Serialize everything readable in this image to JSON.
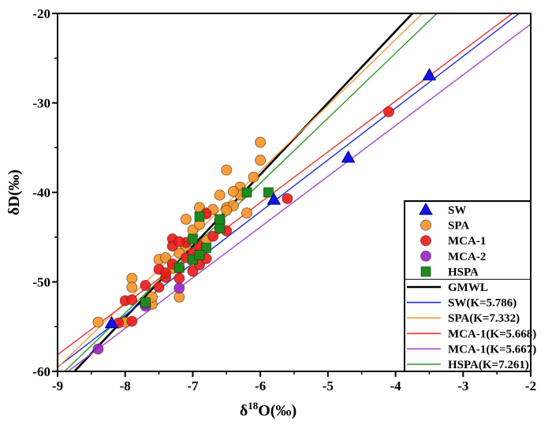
{
  "chart_data": {
    "type": "scatter",
    "title": "",
    "xlabel": "δ18O(‰)",
    "xlabel_main": "δ",
    "xlabel_sup": "18",
    "xlabel_rest": "O(‰)",
    "ylabel": "δD(‰)",
    "xlim": [
      -9,
      -2
    ],
    "ylim": [
      -60,
      -20
    ],
    "xticks": [
      -9,
      -8,
      -7,
      -6,
      -5,
      -4,
      -3,
      -2
    ],
    "yticks": [
      -60,
      -50,
      -40,
      -30,
      -20
    ],
    "grid": false,
    "legend_position": "bottom-right",
    "series": [
      {
        "name": "SW",
        "marker": "triangle",
        "color": "#1414e6",
        "points": [
          [
            -8.2,
            -54.6
          ],
          [
            -5.8,
            -40.8
          ],
          [
            -4.7,
            -36.1
          ],
          [
            -3.5,
            -26.9
          ]
        ]
      },
      {
        "name": "SPA",
        "marker": "circle",
        "color": "#f7972b",
        "points": [
          [
            -8.4,
            -54.5
          ],
          [
            -8.0,
            -54.5
          ],
          [
            -7.9,
            -49.6
          ],
          [
            -7.9,
            -50.6
          ],
          [
            -7.6,
            -52.5
          ],
          [
            -7.5,
            -47.5
          ],
          [
            -7.4,
            -47.3
          ],
          [
            -7.2,
            -51.7
          ],
          [
            -7.1,
            -43.0
          ],
          [
            -7.0,
            -44.2
          ],
          [
            -6.9,
            -41.7
          ],
          [
            -6.8,
            -45.4
          ],
          [
            -6.8,
            -42.3
          ],
          [
            -6.7,
            -41.9
          ],
          [
            -6.6,
            -40.3
          ],
          [
            -6.6,
            -44.0
          ],
          [
            -6.5,
            -41.7
          ],
          [
            -6.5,
            -37.5
          ],
          [
            -6.4,
            -41.5
          ],
          [
            -6.3,
            -39.4
          ],
          [
            -6.3,
            -40.3
          ],
          [
            -6.2,
            -42.3
          ],
          [
            -6.1,
            -38.3
          ],
          [
            -6.0,
            -36.4
          ],
          [
            -6.0,
            -34.4
          ],
          [
            -7.6,
            -51.7
          ],
          [
            -7.3,
            -48.5
          ],
          [
            -7.1,
            -46.0
          ],
          [
            -6.9,
            -43.6
          ],
          [
            -6.6,
            -43.1
          ],
          [
            -6.4,
            -39.9
          ],
          [
            -7.0,
            -47.6
          ],
          [
            -7.2,
            -46.8
          ],
          [
            -6.5,
            -42.0
          ]
        ]
      },
      {
        "name": "MCA-1",
        "marker": "circle",
        "color": "#ee1c1c",
        "points": [
          [
            -8.1,
            -54.6
          ],
          [
            -7.9,
            -54.4
          ],
          [
            -8.0,
            -52.1
          ],
          [
            -7.9,
            -52.0
          ],
          [
            -7.7,
            -50.4
          ],
          [
            -7.7,
            -52.5
          ],
          [
            -7.5,
            -48.6
          ],
          [
            -7.5,
            -50.6
          ],
          [
            -7.4,
            -49.5
          ],
          [
            -7.3,
            -45.2
          ],
          [
            -7.3,
            -46.0
          ],
          [
            -7.2,
            -48.5
          ],
          [
            -7.2,
            -49.6
          ],
          [
            -7.1,
            -47.3
          ],
          [
            -7.1,
            -45.6
          ],
          [
            -7.0,
            -46.8
          ],
          [
            -6.9,
            -48.1
          ],
          [
            -6.8,
            -42.4
          ],
          [
            -6.8,
            -47.4
          ],
          [
            -6.7,
            -44.9
          ],
          [
            -6.6,
            -43.3
          ],
          [
            -6.5,
            -44.3
          ],
          [
            -7.3,
            -48.0
          ],
          [
            -7.4,
            -49.0
          ],
          [
            -7.0,
            -48.8
          ],
          [
            -7.2,
            -45.5
          ],
          [
            -6.9,
            -46.0
          ],
          [
            -5.6,
            -40.7
          ],
          [
            -4.1,
            -31.0
          ]
        ]
      },
      {
        "name": "MCA-2",
        "marker": "circle",
        "color": "#9a28c8",
        "points": [
          [
            -8.4,
            -57.5
          ],
          [
            -7.2,
            -50.7
          ],
          [
            -7.7,
            -52.7
          ]
        ]
      },
      {
        "name": "HSPA",
        "marker": "square",
        "color": "#1e8a1e",
        "points": [
          [
            -7.7,
            -52.3
          ],
          [
            -7.2,
            -48.4
          ],
          [
            -7.0,
            -45.2
          ],
          [
            -6.9,
            -42.7
          ],
          [
            -6.8,
            -46.2
          ],
          [
            -6.6,
            -44.0
          ],
          [
            -6.6,
            -43.0
          ],
          [
            -6.2,
            -40.0
          ],
          [
            -5.88,
            -40.0
          ],
          [
            -7.0,
            -47.5
          ],
          [
            -6.9,
            -47.0
          ]
        ]
      }
    ],
    "lines": [
      {
        "name": "GMWL",
        "slope": 8.0,
        "intercept": 10.0,
        "color": "#000000",
        "bold": true
      },
      {
        "name": "SW(K=5.786)",
        "slope": 5.786,
        "intercept": -7.44,
        "color": "#1f2fd8"
      },
      {
        "name": "SPA(K=7.332)",
        "slope": 7.332,
        "intercept": 6.4,
        "color": "#f59a3a"
      },
      {
        "name": "MCA-1(K=5.668)",
        "slope": 5.668,
        "intercept": -7.13,
        "color": "#e8332e"
      },
      {
        "name": "MCA-1(K=5.667)",
        "slope": 5.667,
        "intercept": -9.87,
        "color": "#a445d0"
      },
      {
        "name": "HSPA(K=7.261)",
        "slope": 7.261,
        "intercept": 4.6,
        "color": "#2a9a2a"
      }
    ],
    "legend": [
      "SW",
      "SPA",
      "MCA-1",
      "MCA-2",
      "HSPA",
      "GMWL",
      "SW(K=5.786)",
      "SPA(K=7.332)",
      "MCA-1(K=5.668)",
      "MCA-1(K=5.667)",
      "HSPA(K=7.261)"
    ]
  }
}
